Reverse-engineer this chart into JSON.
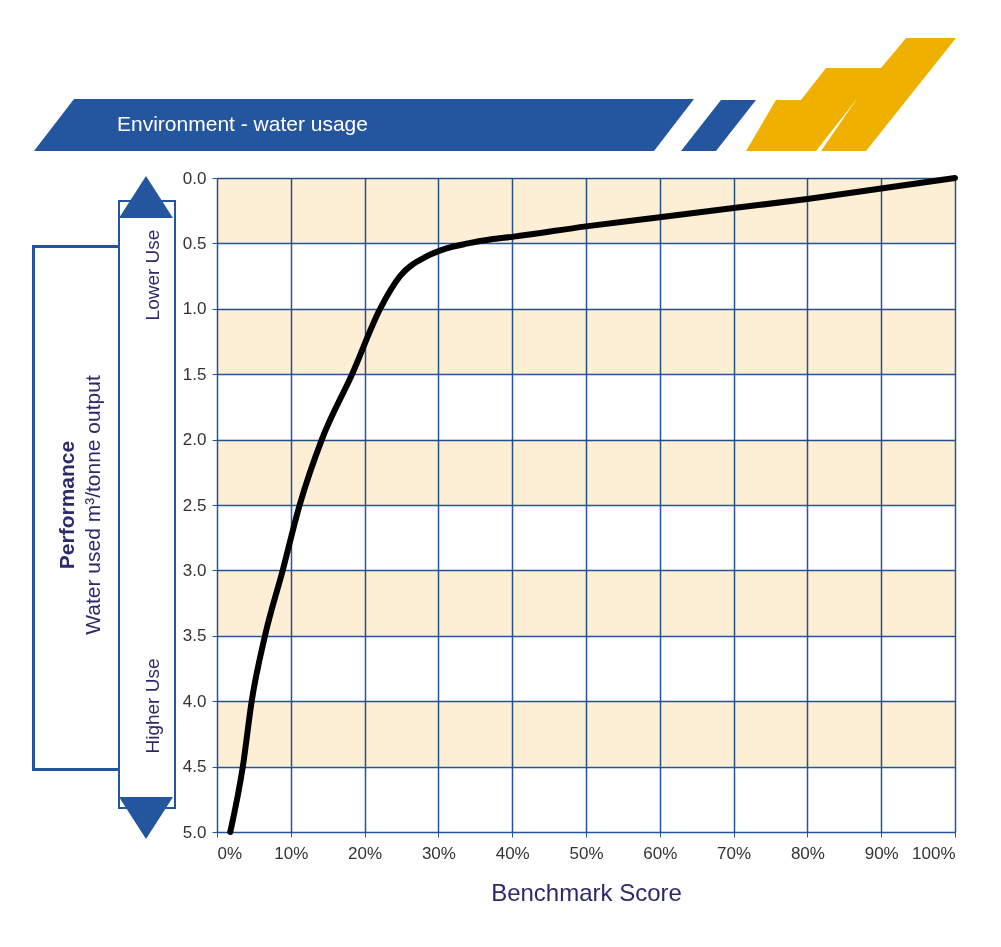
{
  "chart_data": {
    "type": "line",
    "title": "Environment - water usage",
    "xlabel": "Benchmark Score",
    "ylabel": "Performance\nWater used m³/tonne output",
    "annotations": [
      "Lower Use",
      "Higher Use"
    ],
    "x": [
      1.8,
      3.5,
      4.7,
      6.5,
      8.9,
      11.2,
      14.2,
      18.3,
      22.1,
      24.8,
      28.4,
      31,
      34,
      37,
      40,
      50,
      60,
      70,
      80,
      90,
      100
    ],
    "series": [
      {
        "color": "#000000",
        "values": [
          5.0,
          4.5,
          4.0,
          3.5,
          3.0,
          2.5,
          2.0,
          1.5,
          1.0,
          0.75,
          0.6,
          0.54,
          0.5,
          0.47,
          0.45,
          0.37,
          0.3,
          0.23,
          0.16,
          0.08,
          0.0
        ]
      }
    ],
    "xlim": [
      0,
      100
    ],
    "xticks": [
      {
        "value": 0,
        "label": "0%"
      },
      {
        "value": 10,
        "label": "10%"
      },
      {
        "value": 20,
        "label": "20%"
      },
      {
        "value": 30,
        "label": "30%"
      },
      {
        "value": 40,
        "label": "40%"
      },
      {
        "value": 50,
        "label": "50%"
      },
      {
        "value": 60,
        "label": "60%"
      },
      {
        "value": 70,
        "label": "70%"
      },
      {
        "value": 80,
        "label": "80%"
      },
      {
        "value": 90,
        "label": "90%"
      },
      {
        "value": 100,
        "label": "100%"
      }
    ],
    "ylim": [
      5,
      0
    ],
    "yticks": [
      {
        "value": 0,
        "label": "0.0"
      },
      {
        "value": 0.5,
        "label": "0.5"
      },
      {
        "value": 1,
        "label": "1.0"
      },
      {
        "value": 1.5,
        "label": "1.5"
      },
      {
        "value": 2,
        "label": "2.0"
      },
      {
        "value": 2.5,
        "label": "2.5"
      },
      {
        "value": 3,
        "label": "3.0"
      },
      {
        "value": 3.5,
        "label": "3.5"
      },
      {
        "value": 4,
        "label": "4.0"
      },
      {
        "value": 4.5,
        "label": "4.5"
      },
      {
        "value": 5,
        "label": "5.0"
      }
    ],
    "bands": [
      {
        "axis": "y",
        "from": 0,
        "to": 0.5,
        "color": "#fdeed6"
      },
      {
        "axis": "y",
        "from": 1,
        "to": 1.5,
        "color": "#fdeed6"
      },
      {
        "axis": "y",
        "from": 2,
        "to": 2.5,
        "color": "#fdeed6"
      },
      {
        "axis": "y",
        "from": 3,
        "to": 3.5,
        "color": "#fdeed6"
      },
      {
        "axis": "y",
        "from": 4,
        "to": 4.5,
        "color": "#fdeed6"
      }
    ],
    "grid": true,
    "line_style": "solid"
  }
}
